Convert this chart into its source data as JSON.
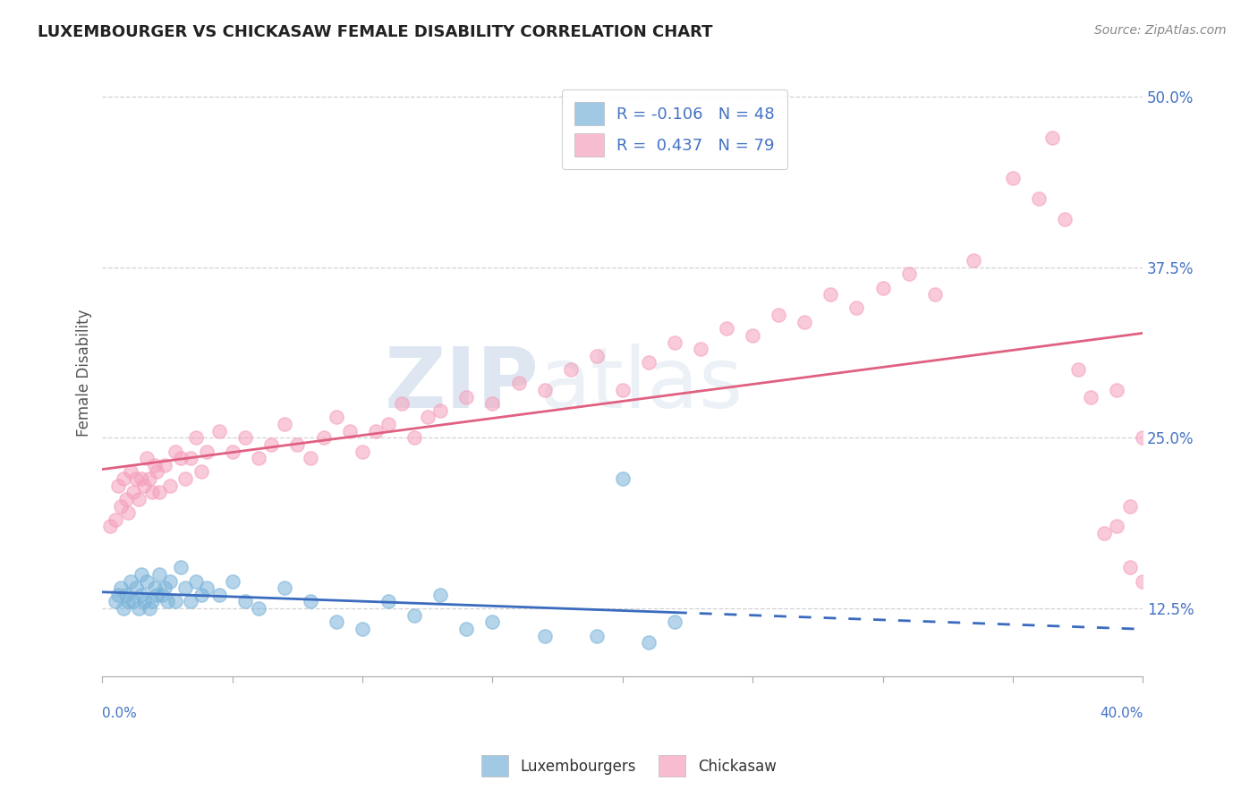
{
  "title": "LUXEMBOURGER VS CHICKASAW FEMALE DISABILITY CORRELATION CHART",
  "source": "Source: ZipAtlas.com",
  "ylabel": "Female Disability",
  "xlim": [
    0.0,
    40.0
  ],
  "ylim": [
    7.5,
    52.0
  ],
  "yticks": [
    12.5,
    25.0,
    37.5,
    50.0
  ],
  "ytick_labels": [
    "12.5%",
    "25.0%",
    "37.5%",
    "50.0%"
  ],
  "lux_color": "#7ab3d9",
  "chick_color": "#f5a0bc",
  "lux_trend_color": "#3a6bbf",
  "chick_trend_color": "#e06080",
  "watermark_zip": "ZIP",
  "watermark_atlas": "atlas",
  "lux_r": -0.106,
  "lux_n": 48,
  "chick_r": 0.437,
  "chick_n": 79,
  "background_color": "#ffffff",
  "grid_color": "#cccccc",
  "title_color": "#222222",
  "tick_label_color": "#4472c4",
  "lux_x": [
    0.5,
    0.6,
    0.7,
    0.8,
    0.9,
    1.0,
    1.1,
    1.2,
    1.3,
    1.4,
    1.5,
    1.5,
    1.6,
    1.7,
    1.8,
    1.9,
    2.0,
    2.1,
    2.2,
    2.3,
    2.4,
    2.5,
    2.6,
    2.8,
    3.0,
    3.2,
    3.4,
    3.6,
    3.8,
    4.0,
    4.5,
    5.0,
    5.5,
    6.0,
    7.0,
    8.0,
    9.0,
    10.0,
    11.0,
    12.0,
    13.0,
    14.0,
    15.0,
    17.0,
    19.0,
    20.0,
    21.0,
    22.0
  ],
  "lux_y": [
    13.0,
    13.5,
    14.0,
    12.5,
    13.5,
    13.0,
    14.5,
    13.0,
    14.0,
    12.5,
    13.5,
    15.0,
    13.0,
    14.5,
    12.5,
    13.0,
    14.0,
    13.5,
    15.0,
    13.5,
    14.0,
    13.0,
    14.5,
    13.0,
    15.5,
    14.0,
    13.0,
    14.5,
    13.5,
    14.0,
    13.5,
    14.5,
    13.0,
    12.5,
    14.0,
    13.0,
    11.5,
    11.0,
    13.0,
    12.0,
    13.5,
    11.0,
    11.5,
    10.5,
    10.5,
    22.0,
    10.0,
    11.5
  ],
  "chick_x": [
    0.3,
    0.5,
    0.6,
    0.7,
    0.8,
    0.9,
    1.0,
    1.1,
    1.2,
    1.3,
    1.4,
    1.5,
    1.6,
    1.7,
    1.8,
    1.9,
    2.0,
    2.1,
    2.2,
    2.4,
    2.6,
    2.8,
    3.0,
    3.2,
    3.4,
    3.6,
    3.8,
    4.0,
    4.5,
    5.0,
    5.5,
    6.0,
    6.5,
    7.0,
    7.5,
    8.0,
    8.5,
    9.0,
    9.5,
    10.0,
    10.5,
    11.0,
    11.5,
    12.0,
    12.5,
    13.0,
    14.0,
    15.0,
    16.0,
    17.0,
    18.0,
    19.0,
    20.0,
    21.0,
    22.0,
    23.0,
    24.0,
    25.0,
    26.0,
    27.0,
    28.0,
    29.0,
    30.0,
    31.0,
    32.0,
    33.5,
    35.0,
    36.0,
    36.5,
    37.0,
    37.5,
    38.0,
    38.5,
    39.0,
    39.5,
    40.0,
    40.0,
    39.5,
    39.0
  ],
  "chick_y": [
    18.5,
    19.0,
    21.5,
    20.0,
    22.0,
    20.5,
    19.5,
    22.5,
    21.0,
    22.0,
    20.5,
    22.0,
    21.5,
    23.5,
    22.0,
    21.0,
    23.0,
    22.5,
    21.0,
    23.0,
    21.5,
    24.0,
    23.5,
    22.0,
    23.5,
    25.0,
    22.5,
    24.0,
    25.5,
    24.0,
    25.0,
    23.5,
    24.5,
    26.0,
    24.5,
    23.5,
    25.0,
    26.5,
    25.5,
    24.0,
    25.5,
    26.0,
    27.5,
    25.0,
    26.5,
    27.0,
    28.0,
    27.5,
    29.0,
    28.5,
    30.0,
    31.0,
    28.5,
    30.5,
    32.0,
    31.5,
    33.0,
    32.5,
    34.0,
    33.5,
    35.5,
    34.5,
    36.0,
    37.0,
    35.5,
    38.0,
    44.0,
    42.5,
    47.0,
    41.0,
    30.0,
    28.0,
    18.0,
    28.5,
    15.5,
    14.5,
    25.0,
    20.0,
    18.5
  ]
}
